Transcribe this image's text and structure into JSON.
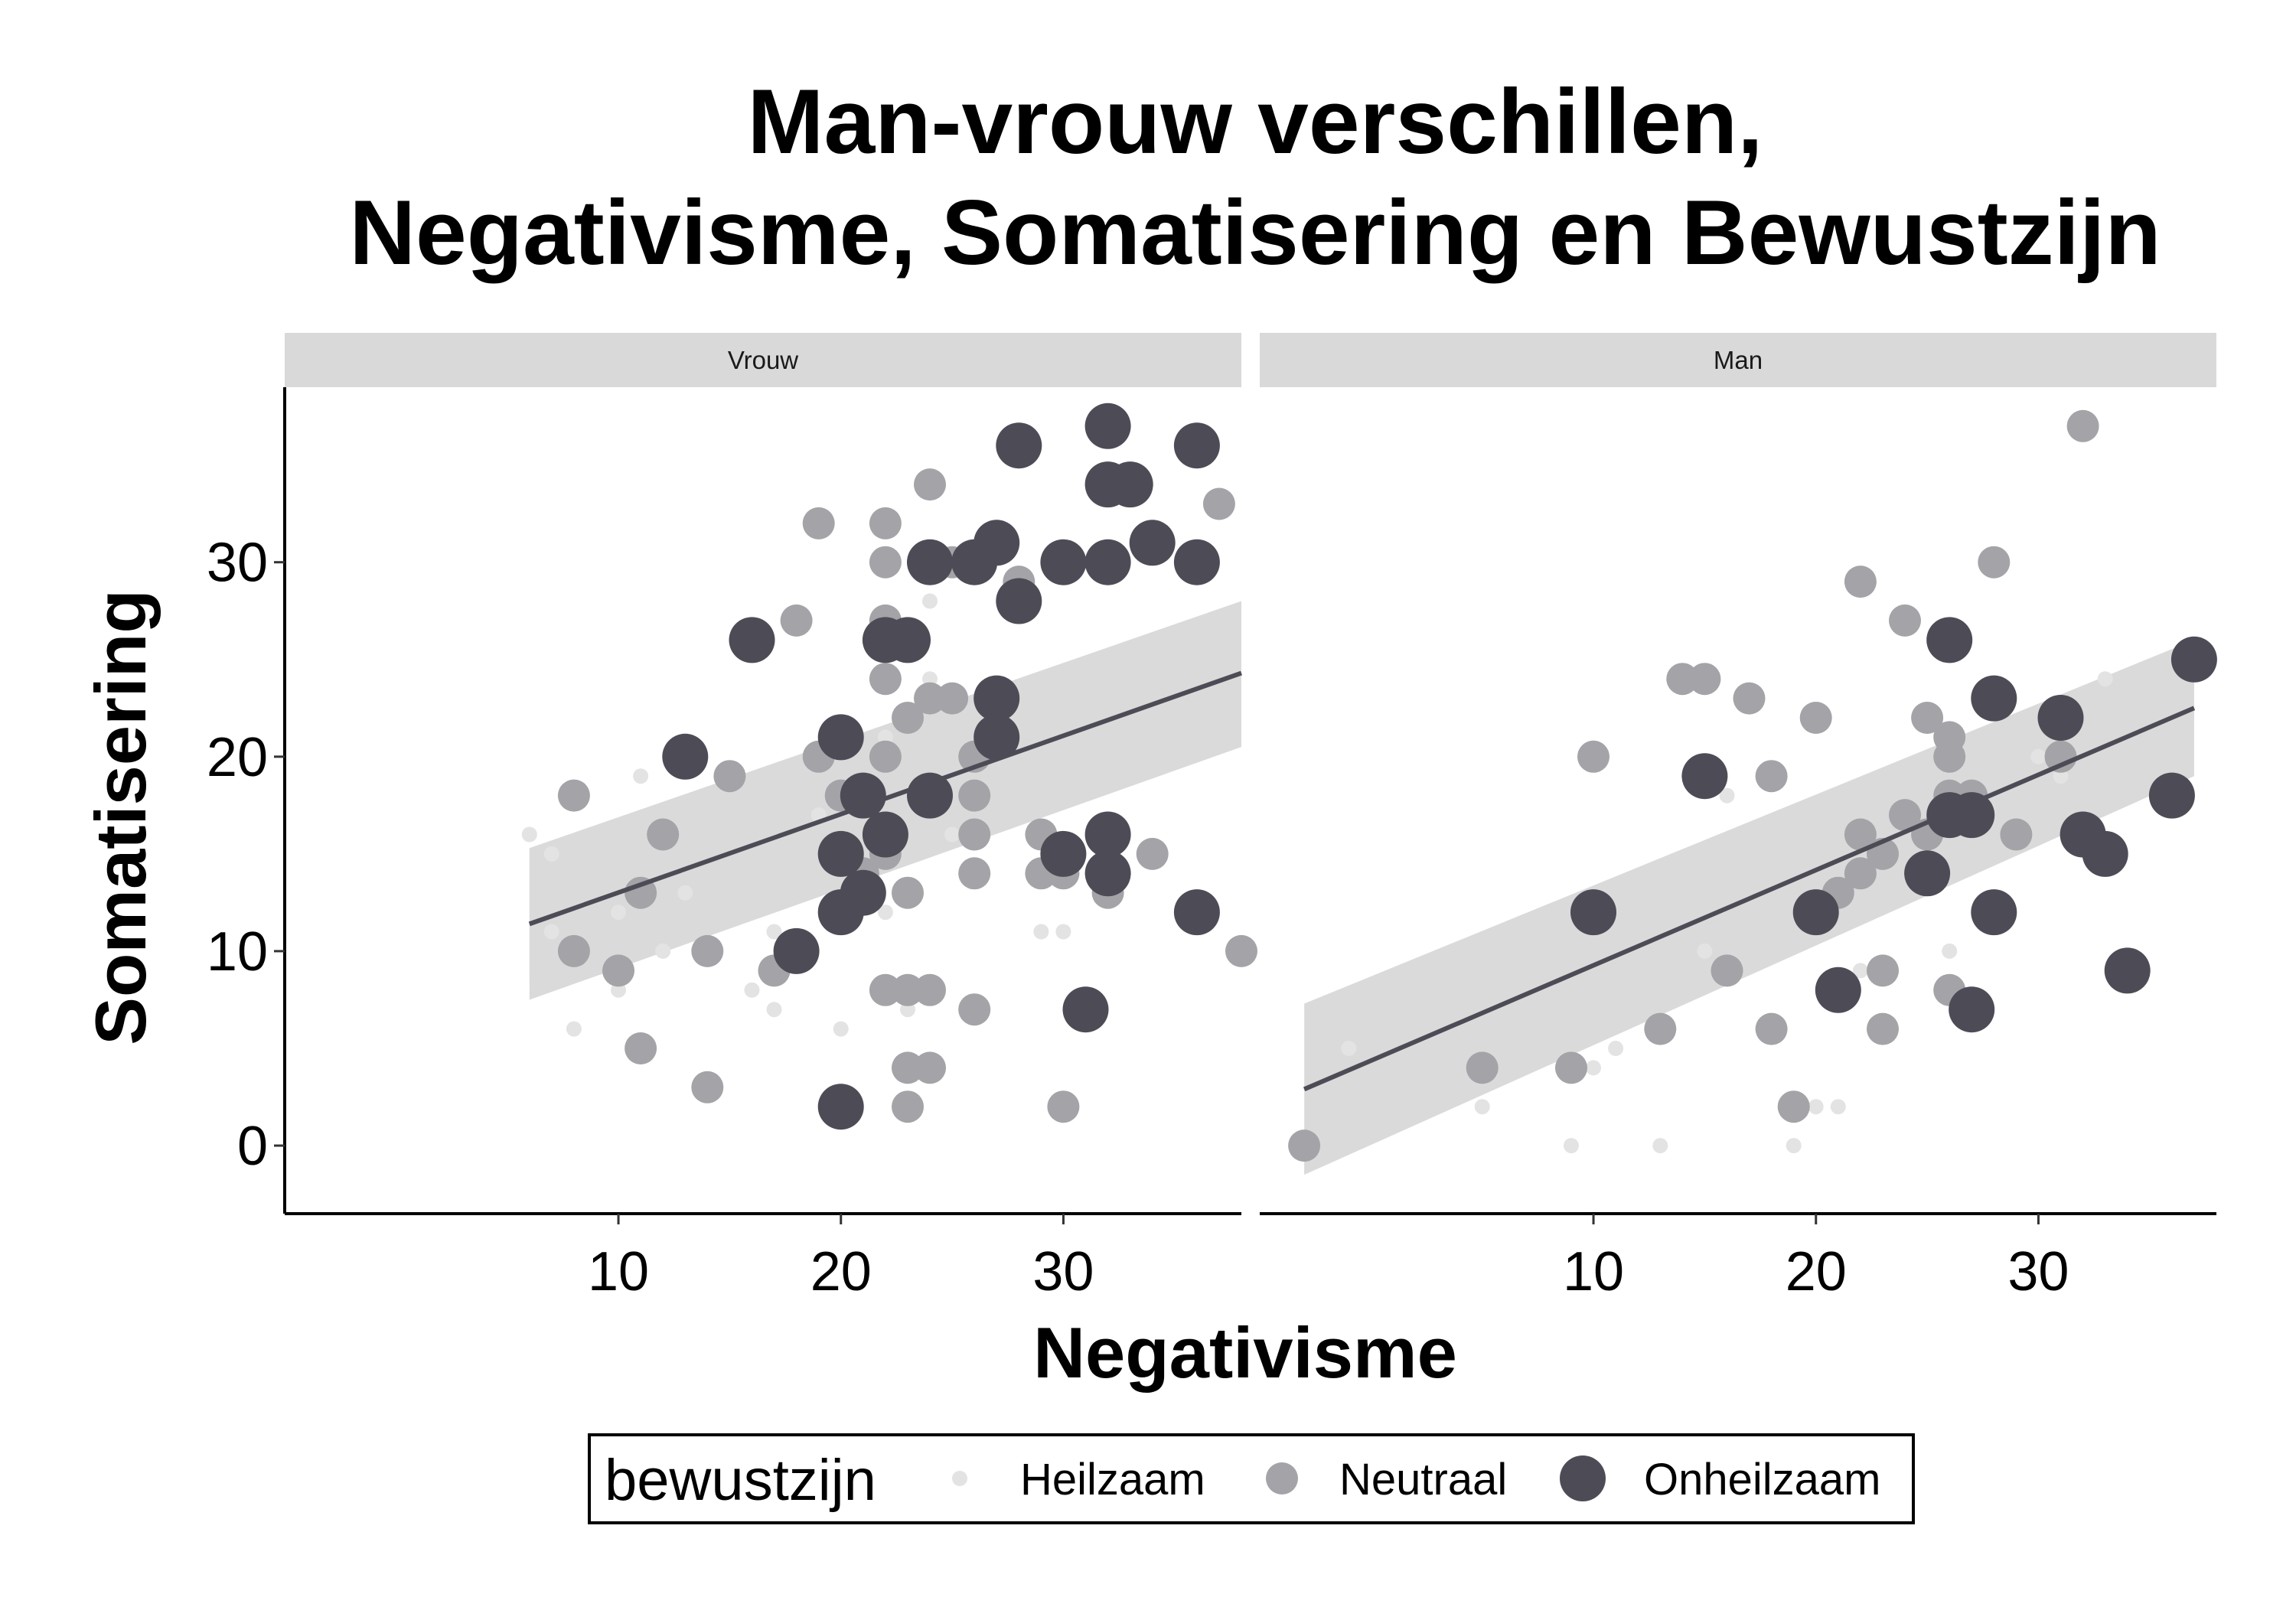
{
  "chart_data": {
    "type": "scatter",
    "title": [
      "Man-vrouw verschillen,",
      "Negativisme, Somatisering en Bewustzijn"
    ],
    "xlabel": "Negativisme",
    "ylabel": "Somatisering",
    "xlim": [
      -5,
      38
    ],
    "ylim": [
      -3.5,
      39
    ],
    "xticks": [
      10,
      20,
      30
    ],
    "yticks": [
      0,
      10,
      20,
      30
    ],
    "grid": false,
    "legend": {
      "title": "bewustzijn",
      "position": "bottom",
      "entries": [
        {
          "name": "Heilzaam",
          "color": "#e3e3e3"
        },
        {
          "name": "Neutraal",
          "color": "#a3a3a8"
        },
        {
          "name": "Onheilzaam",
          "color": "#4d4c56"
        }
      ]
    },
    "facets": [
      {
        "label": "Vrouw",
        "trend": {
          "x": [
            6,
            38
          ],
          "y": [
            11.4,
            24.3
          ],
          "band_lo": [
            7.5,
            20.5
          ],
          "band_hi": [
            15.3,
            28.0
          ]
        },
        "series": [
          {
            "name": "Heilzaam",
            "points": [
              [
                6,
                16
              ],
              [
                7,
                15
              ],
              [
                7,
                11
              ],
              [
                8,
                6
              ],
              [
                10,
                12
              ],
              [
                10,
                8
              ],
              [
                11,
                19
              ],
              [
                12,
                10
              ],
              [
                13,
                13
              ],
              [
                16,
                8
              ],
              [
                17,
                11
              ],
              [
                17,
                7
              ],
              [
                19,
                17
              ],
              [
                20,
                6
              ],
              [
                21,
                14
              ],
              [
                22,
                21
              ],
              [
                22,
                12
              ],
              [
                23,
                7
              ],
              [
                24,
                28
              ],
              [
                24,
                24
              ],
              [
                25,
                16
              ],
              [
                29,
                11
              ],
              [
                30,
                11
              ]
            ]
          },
          {
            "name": "Neutraal",
            "points": [
              [
                8,
                18
              ],
              [
                8,
                10
              ],
              [
                10,
                9
              ],
              [
                11,
                13
              ],
              [
                11,
                5
              ],
              [
                12,
                16
              ],
              [
                14,
                10
              ],
              [
                14,
                3
              ],
              [
                15,
                19
              ],
              [
                17,
                9
              ],
              [
                18,
                27
              ],
              [
                19,
                32
              ],
              [
                19,
                20
              ],
              [
                20,
                18
              ],
              [
                21,
                14
              ],
              [
                22,
                32
              ],
              [
                22,
                30
              ],
              [
                22,
                27
              ],
              [
                22,
                24
              ],
              [
                22,
                20
              ],
              [
                22,
                15
              ],
              [
                22,
                8
              ],
              [
                23,
                13
              ],
              [
                23,
                8
              ],
              [
                23,
                4
              ],
              [
                23,
                2
              ],
              [
                23,
                22
              ],
              [
                24,
                34
              ],
              [
                24,
                23
              ],
              [
                24,
                8
              ],
              [
                24,
                4
              ],
              [
                25,
                23
              ],
              [
                25,
                30
              ],
              [
                26,
                20
              ],
              [
                26,
                18
              ],
              [
                26,
                16
              ],
              [
                26,
                14
              ],
              [
                26,
                7
              ],
              [
                28,
                29
              ],
              [
                29,
                16
              ],
              [
                29,
                14
              ],
              [
                30,
                14
              ],
              [
                30,
                2
              ],
              [
                32,
                14
              ],
              [
                32,
                13
              ],
              [
                32,
                16
              ],
              [
                34,
                15
              ],
              [
                37,
                33
              ],
              [
                38,
                10
              ]
            ]
          },
          {
            "name": "Onheilzaam",
            "points": [
              [
                13,
                20
              ],
              [
                16,
                26
              ],
              [
                18,
                10
              ],
              [
                20,
                21
              ],
              [
                20,
                15
              ],
              [
                20,
                12
              ],
              [
                20,
                2
              ],
              [
                21,
                18
              ],
              [
                21,
                13
              ],
              [
                22,
                26
              ],
              [
                22,
                16
              ],
              [
                23,
                26
              ],
              [
                24,
                30
              ],
              [
                24,
                18
              ],
              [
                26,
                30
              ],
              [
                27,
                31
              ],
              [
                27,
                23
              ],
              [
                27,
                21
              ],
              [
                28,
                36
              ],
              [
                28,
                28
              ],
              [
                30,
                30
              ],
              [
                30,
                15
              ],
              [
                31,
                7
              ],
              [
                32,
                37
              ],
              [
                32,
                34
              ],
              [
                32,
                30
              ],
              [
                32,
                16
              ],
              [
                32,
                14
              ],
              [
                33,
                34
              ],
              [
                34,
                31
              ],
              [
                36,
                36
              ],
              [
                36,
                30
              ],
              [
                36,
                12
              ]
            ]
          }
        ]
      },
      {
        "label": "Man",
        "trend": {
          "x": [
            -3,
            37
          ],
          "y": [
            2.9,
            22.5
          ],
          "band_lo": [
            -1.5,
            19.0
          ],
          "band_hi": [
            7.3,
            26.0
          ]
        },
        "series": [
          {
            "name": "Heilzaam",
            "points": [
              [
                -1,
                5
              ],
              [
                5,
                2
              ],
              [
                9,
                0
              ],
              [
                10,
                4
              ],
              [
                11,
                5
              ],
              [
                13,
                0
              ],
              [
                15,
                10
              ],
              [
                16,
                18
              ],
              [
                19,
                0
              ],
              [
                20,
                2
              ],
              [
                21,
                2
              ],
              [
                22,
                9
              ],
              [
                25,
                14
              ],
              [
                26,
                10
              ],
              [
                27,
                18
              ],
              [
                30,
                20
              ],
              [
                31,
                19
              ],
              [
                33,
                24
              ]
            ]
          },
          {
            "name": "Neutraal",
            "points": [
              [
                -3,
                0
              ],
              [
                5,
                4
              ],
              [
                9,
                4
              ],
              [
                10,
                20
              ],
              [
                13,
                6
              ],
              [
                14,
                24
              ],
              [
                15,
                24
              ],
              [
                16,
                9
              ],
              [
                17,
                23
              ],
              [
                18,
                19
              ],
              [
                18,
                6
              ],
              [
                19,
                2
              ],
              [
                20,
                22
              ],
              [
                21,
                13
              ],
              [
                22,
                29
              ],
              [
                22,
                16
              ],
              [
                22,
                14
              ],
              [
                23,
                15
              ],
              [
                23,
                9
              ],
              [
                23,
                6
              ],
              [
                24,
                27
              ],
              [
                24,
                17
              ],
              [
                25,
                22
              ],
              [
                25,
                16
              ],
              [
                26,
                21
              ],
              [
                26,
                20
              ],
              [
                26,
                18
              ],
              [
                26,
                8
              ],
              [
                27,
                18
              ],
              [
                28,
                30
              ],
              [
                29,
                16
              ],
              [
                31,
                20
              ],
              [
                32,
                37
              ]
            ]
          },
          {
            "name": "Onheilzaam",
            "points": [
              [
                10,
                12
              ],
              [
                15,
                19
              ],
              [
                20,
                12
              ],
              [
                21,
                8
              ],
              [
                25,
                14
              ],
              [
                26,
                26
              ],
              [
                26,
                17
              ],
              [
                27,
                17
              ],
              [
                27,
                7
              ],
              [
                28,
                23
              ],
              [
                28,
                12
              ],
              [
                31,
                22
              ],
              [
                32,
                16
              ],
              [
                33,
                15
              ],
              [
                34,
                9
              ],
              [
                36,
                18
              ],
              [
                37,
                25
              ]
            ]
          }
        ]
      }
    ]
  }
}
